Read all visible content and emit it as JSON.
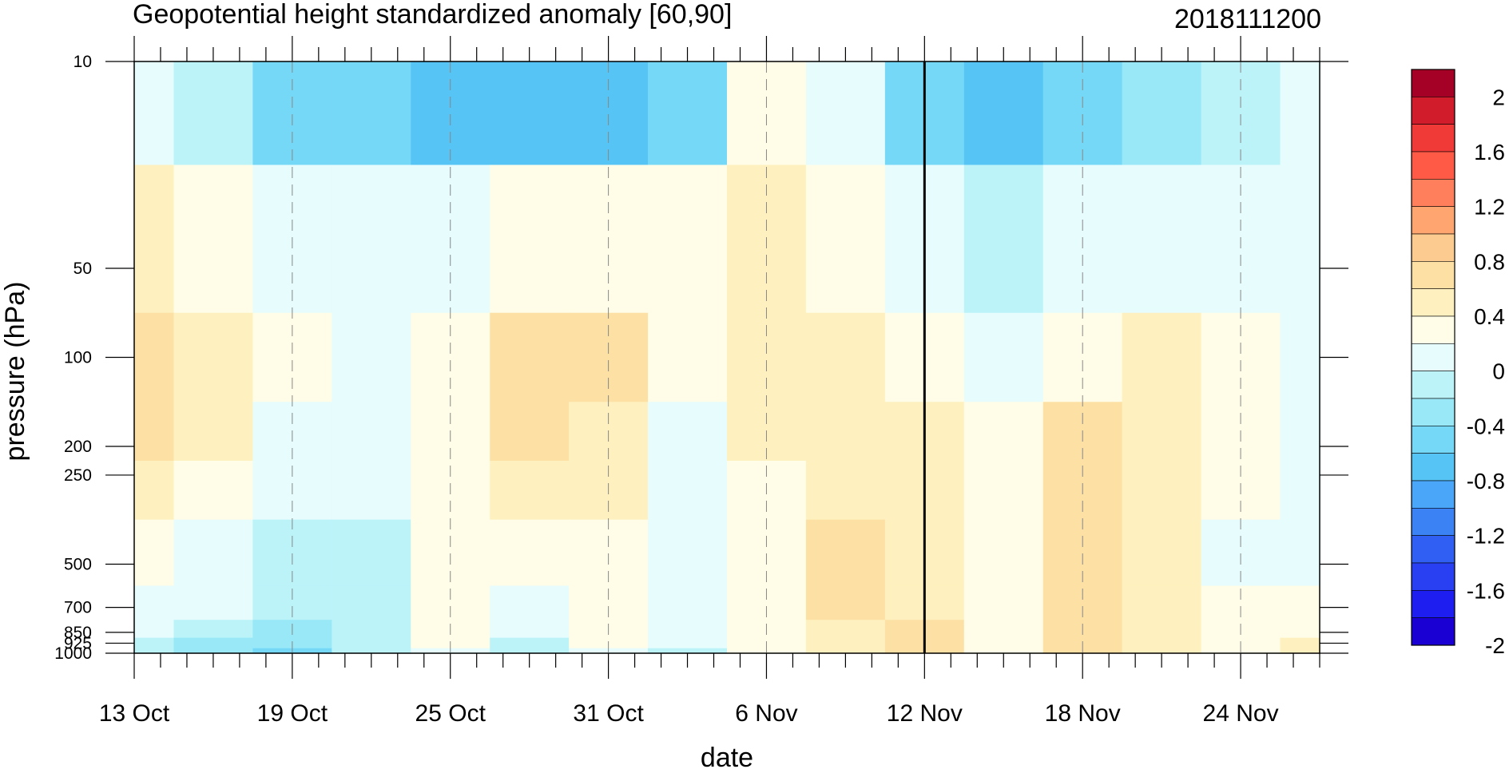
{
  "chart_data": {
    "type": "heatmap",
    "title": "Geopotential height standardized anomaly [60,90]",
    "date_label": "2018111200",
    "xlabel": "date",
    "ylabel": "pressure (hPa)",
    "x_tick_labels": [
      "13 Oct",
      "19 Oct",
      "25 Oct",
      "31 Oct",
      "6 Nov",
      "12 Nov",
      "18 Nov",
      "24 Nov"
    ],
    "x_tick_days": [
      0,
      6,
      12,
      18,
      24,
      30,
      36,
      42
    ],
    "x_range_days": [
      0,
      45
    ],
    "x_marker_day": 30,
    "y_tick_labels": [
      "10",
      "50",
      "100",
      "200",
      "250",
      "500",
      "700",
      "850",
      "925",
      "1000"
    ],
    "y_tick_values": [
      10,
      50,
      100,
      200,
      250,
      500,
      700,
      850,
      925,
      1000
    ],
    "y_range": [
      1000,
      10
    ],
    "y_scale": "log",
    "grid": "dashed vertical lines at labeled dates",
    "colorbar": {
      "labels": [
        "2",
        "1.6",
        "1.2",
        "0.8",
        "0.4",
        "0",
        "-0.4",
        "-0.8",
        "-1.2",
        "-1.6",
        "-2"
      ],
      "colors": [
        "#a50026",
        "#d01c2b",
        "#f03a38",
        "#ff5a46",
        "#ff7f5c",
        "#ffa56f",
        "#fbcb8f",
        "#fce0a4",
        "#fef1bf",
        "#fffde7",
        "#e6fcfd",
        "#bbf3f9",
        "#98e8f8",
        "#76d8f7",
        "#56c5f5",
        "#4aa6f8",
        "#3b82f4",
        "#2f5ff3",
        "#2840f2",
        "#1e1ef0",
        "#1b00d4"
      ]
    },
    "values": {
      "levels_hPa": [
        10,
        50,
        100,
        200,
        250,
        500,
        700,
        850,
        925,
        1000
      ],
      "days": [
        0,
        3,
        6,
        9,
        12,
        15,
        18,
        21,
        24,
        27,
        30,
        33,
        36,
        39,
        42,
        45
      ],
      "z": [
        [
          0.1,
          -0.2,
          -0.5,
          -0.6,
          -0.7,
          -0.8,
          -0.8,
          -0.5,
          0.2,
          0.1,
          -0.5,
          -0.7,
          -0.6,
          -0.4,
          -0.2,
          0.1
        ],
        [
          0.5,
          0.3,
          0.1,
          0.0,
          0.0,
          0.2,
          0.3,
          0.2,
          0.5,
          0.3,
          0.05,
          -0.1,
          0.1,
          0.1,
          0.1,
          0.1
        ],
        [
          0.7,
          0.5,
          0.2,
          0.1,
          0.3,
          0.6,
          0.7,
          0.3,
          0.5,
          0.4,
          0.3,
          0.1,
          0.3,
          0.4,
          0.2,
          0.1
        ],
        [
          0.6,
          0.4,
          0.1,
          0.0,
          0.3,
          0.6,
          0.5,
          0.1,
          0.4,
          0.5,
          0.4,
          0.3,
          0.6,
          0.5,
          0.2,
          0.1
        ],
        [
          0.5,
          0.3,
          0.05,
          0.0,
          0.3,
          0.5,
          0.4,
          0.05,
          0.3,
          0.5,
          0.4,
          0.3,
          0.6,
          0.5,
          0.2,
          0.1
        ],
        [
          0.2,
          0.1,
          -0.1,
          -0.1,
          0.3,
          0.3,
          0.3,
          0.1,
          0.3,
          0.6,
          0.5,
          0.3,
          0.6,
          0.5,
          0.1,
          0.1
        ],
        [
          0.1,
          0.05,
          -0.2,
          -0.1,
          0.2,
          0.1,
          0.2,
          0.1,
          0.3,
          0.6,
          0.5,
          0.3,
          0.6,
          0.5,
          0.2,
          0.2
        ],
        [
          0.0,
          -0.2,
          -0.4,
          -0.1,
          0.2,
          0.0,
          0.2,
          0.0,
          0.3,
          0.5,
          0.6,
          0.3,
          0.6,
          0.5,
          0.2,
          0.3
        ],
        [
          -0.1,
          -0.3,
          -0.4,
          -0.1,
          0.2,
          -0.1,
          0.2,
          0.0,
          0.3,
          0.5,
          0.6,
          0.3,
          0.6,
          0.5,
          0.2,
          0.4
        ],
        [
          -0.2,
          -0.4,
          -0.5,
          -0.2,
          0.1,
          -0.2,
          0.1,
          -0.1,
          0.2,
          0.4,
          0.6,
          0.3,
          0.6,
          0.5,
          0.2,
          0.5
        ]
      ]
    }
  }
}
